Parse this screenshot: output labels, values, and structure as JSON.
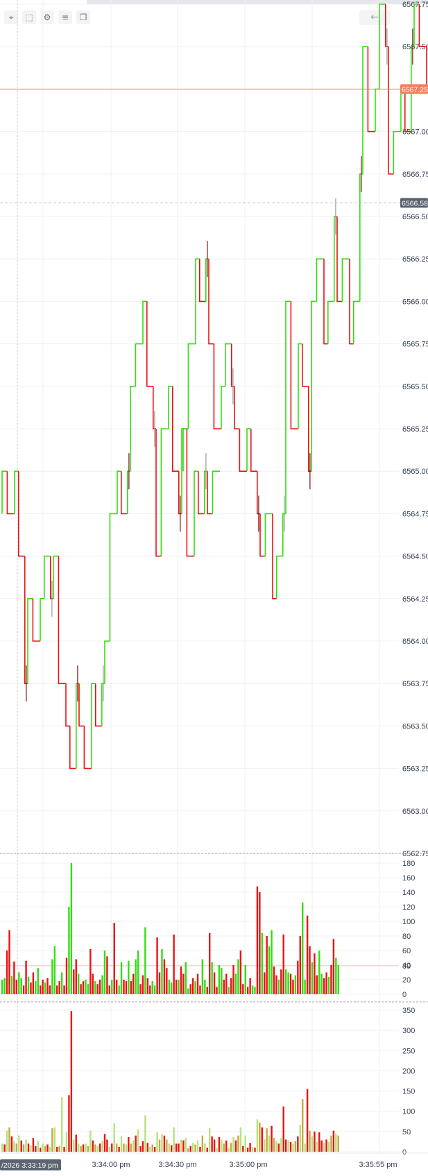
{
  "toolbar": {
    "icons": [
      "crosshair-icon",
      "select-area-icon",
      "gear-icon",
      "indicators-icon",
      "compare-icon"
    ],
    "back_icon": "arrow-left-icon"
  },
  "price_axis": {
    "labels": [
      "6567.75",
      "6567.50",
      "6567.25",
      "6567.00",
      "6566.75",
      "6566.50",
      "6566.25",
      "6566.00",
      "6565.75",
      "6565.50",
      "6565.25",
      "6565.00",
      "6564.75",
      "6564.50",
      "6564.25",
      "6564.00",
      "6563.75",
      "6563.50",
      "6563.25",
      "6563.00",
      "6562.75"
    ],
    "last_price_label": "6567.25",
    "crosshair_price_label": "6566.58"
  },
  "volume_axis": {
    "labels": [
      "180",
      "160",
      "140",
      "120",
      "100",
      "80",
      "60",
      "40",
      "20",
      "0"
    ],
    "marker_label": "39"
  },
  "delta_axis": {
    "labels": [
      "350",
      "300",
      "250",
      "200",
      "150",
      "100",
      "50",
      "0"
    ]
  },
  "time_axis": {
    "labels": [
      "3:34:00 pm",
      "3:34:30 pm",
      "3:35:00 pm",
      "3:35:55 pm"
    ],
    "crosshair_label": "/2026 3:33:19 pm"
  },
  "colors": {
    "up": "#33dd11",
    "down": "#ee1111",
    "dark_down": "#7a1010",
    "dark_up": "#1a6a1a",
    "neutral": "#999999",
    "last_price": "#f08060",
    "crosshair": "#5b6470"
  },
  "chart_data": {
    "type": "line",
    "ylim": [
      6562.75,
      6567.75
    ],
    "price_steps": [
      [
        6564.75,
        6565.0,
        6564.75,
        6565.0,
        6564.5,
        6563.75,
        6564.25,
        6564.0,
        6564.25,
        6564.5,
        6564.25,
        6564.5,
        6563.75,
        6563.5,
        6563.25,
        6563.75,
        6563.5,
        6563.25,
        6563.75,
        6563.5,
        6563.75,
        6564.0,
        6564.75,
        6565.0,
        6564.75,
        6565.0,
        6565.5,
        6565.75,
        6566.0,
        6565.5,
        6565.25,
        6564.5,
        6565.25,
        6565.5,
        6565.0,
        6564.75,
        6565.25,
        6564.5,
        6565.0,
        6564.75,
        6565.0,
        6564.75,
        6565.0
      ],
      [
        6565.0,
        6565.25,
        6565.75,
        6566.25,
        6566.0,
        6566.25,
        6565.75,
        6565.25,
        6565.5,
        6565.75,
        6565.5,
        6565.25,
        6565.0,
        6565.25,
        6565.0,
        6564.75,
        6564.5,
        6564.75,
        6564.25,
        6564.5,
        6564.75,
        6566.0,
        6565.25,
        6565.75,
        6565.5,
        6565.0,
        6566.0,
        6566.25,
        6565.75,
        6566.0,
        6566.5,
        6566.0,
        6566.25,
        6565.75,
        6566.0,
        6566.75,
        6567.5,
        6567.0,
        6567.25,
        6567.75,
        6567.5,
        6566.75,
        6567.0,
        6567.25,
        6567.0,
        6567.5,
        6567.75,
        6567.5,
        6567.25
      ]
    ],
    "volume": {
      "ylim": [
        0,
        180
      ],
      "values": [
        20,
        22,
        60,
        88,
        25,
        45,
        20,
        30,
        22,
        12,
        46,
        24,
        16,
        30,
        18,
        36,
        12,
        20,
        16,
        22,
        12,
        48,
        66,
        12,
        18,
        30,
        12,
        50,
        120,
        180,
        34,
        48,
        28,
        14,
        18,
        20,
        14,
        62,
        28,
        18,
        14,
        20,
        26,
        60,
        52,
        12,
        20,
        98,
        20,
        12,
        44,
        20,
        18,
        46,
        18,
        28,
        48,
        60,
        14,
        26,
        92,
        22,
        12,
        18,
        12,
        78,
        30,
        62,
        48,
        36,
        20,
        16,
        82,
        20,
        20,
        38,
        28,
        44,
        8,
        14,
        22,
        18,
        28,
        12,
        48,
        20,
        10,
        84,
        44,
        30,
        10,
        40,
        36,
        20,
        28,
        10,
        22,
        40,
        28,
        48,
        60,
        14,
        40,
        10,
        22,
        12,
        10,
        148,
        140,
        84,
        30,
        80,
        66,
        88,
        38,
        26,
        20,
        34,
        82,
        34,
        30,
        28,
        20,
        26,
        46,
        80,
        126,
        20,
        108,
        66,
        44,
        56,
        26,
        60,
        28,
        22,
        30,
        24,
        40,
        76,
        50,
        40
      ]
    },
    "delta": {
      "ylim": [
        0,
        350
      ],
      "values": [
        20,
        18,
        52,
        60,
        38,
        26,
        20,
        40,
        28,
        18,
        30,
        20,
        16,
        34,
        14,
        26,
        10,
        20,
        14,
        18,
        12,
        58,
        60,
        12,
        14,
        135,
        12,
        48,
        140,
        348,
        30,
        42,
        20,
        14,
        18,
        20,
        14,
        52,
        28,
        18,
        14,
        20,
        26,
        44,
        30,
        12,
        20,
        70,
        20,
        12,
        38,
        20,
        18,
        36,
        20,
        28,
        40,
        55,
        14,
        26,
        90,
        22,
        12,
        18,
        12,
        48,
        30,
        44,
        40,
        30,
        20,
        16,
        60,
        20,
        20,
        30,
        28,
        34,
        8,
        14,
        22,
        18,
        28,
        12,
        40,
        20,
        10,
        58,
        38,
        30,
        10,
        36,
        30,
        20,
        28,
        10,
        22,
        36,
        28,
        40,
        60,
        14,
        40,
        10,
        22,
        12,
        10,
        80,
        72,
        60,
        30,
        58,
        40,
        64,
        34,
        26,
        20,
        34,
        112,
        30,
        28,
        24,
        20,
        26,
        38,
        66,
        130,
        20,
        155,
        52,
        38,
        50,
        24,
        48,
        28,
        22,
        30,
        24,
        40,
        52,
        44,
        40
      ]
    }
  }
}
